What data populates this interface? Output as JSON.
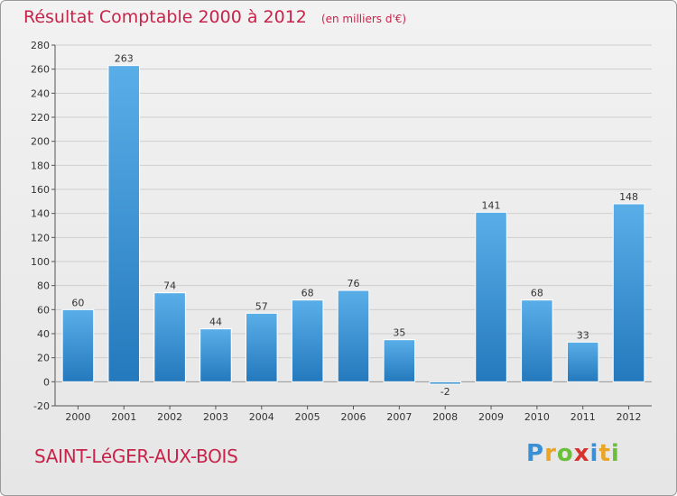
{
  "chart_data": {
    "type": "bar",
    "title": "Résultat Comptable 2000 à 2012",
    "subtitle": "(en milliers d'€)",
    "categories": [
      "2000",
      "2001",
      "2002",
      "2003",
      "2004",
      "2005",
      "2006",
      "2007",
      "2008",
      "2009",
      "2010",
      "2011",
      "2012"
    ],
    "values": [
      60,
      263,
      74,
      44,
      57,
      68,
      76,
      35,
      -2,
      141,
      68,
      33,
      148
    ],
    "ylim": [
      -20,
      280
    ],
    "yticks": [
      -20,
      0,
      20,
      40,
      60,
      80,
      100,
      120,
      140,
      160,
      180,
      200,
      220,
      240,
      260,
      280
    ],
    "xlabel": "",
    "ylabel": "",
    "grid": true,
    "bar_color_top": "#5aaee8",
    "bar_color_bottom": "#2479bd"
  },
  "footer": {
    "commune": "SAINT-LéGER-AUX-BOIS",
    "logo_letters": [
      {
        "ch": "P",
        "color": "#3b8fd6"
      },
      {
        "ch": "r",
        "color": "#e8a526"
      },
      {
        "ch": "o",
        "color": "#6bbf3a"
      },
      {
        "ch": "x",
        "color": "#d8332f"
      },
      {
        "ch": "i",
        "color": "#3b8fd6"
      },
      {
        "ch": "t",
        "color": "#e8a526"
      },
      {
        "ch": "i",
        "color": "#6bbf3a"
      }
    ]
  }
}
